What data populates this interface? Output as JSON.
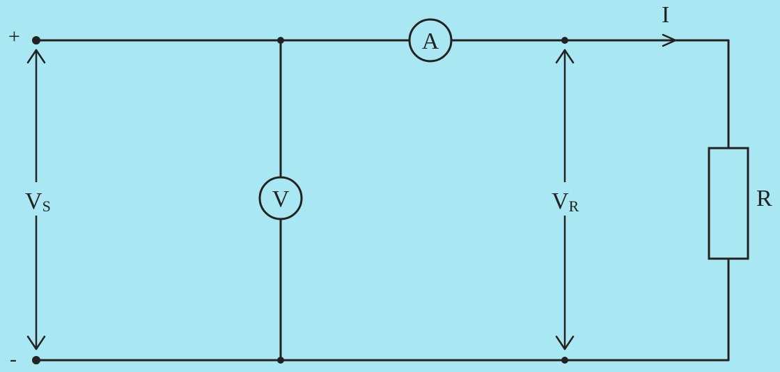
{
  "circuit": {
    "plus_terminal": "+",
    "minus_terminal": "-",
    "ammeter_symbol": "A",
    "voltmeter_symbol": "V",
    "current_label": "I",
    "supply_voltage": {
      "main": "V",
      "sub": "S"
    },
    "resistor_voltage": {
      "main": "V",
      "sub": "R"
    },
    "resistor_label": "R"
  },
  "colors": {
    "background": "#a9e7f2",
    "ink": "#222222"
  }
}
